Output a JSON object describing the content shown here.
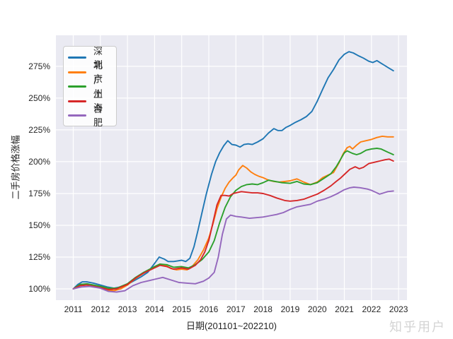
{
  "watermark": "知乎用户",
  "chart_data": {
    "type": "line",
    "title": "",
    "xlabel": "日期(201101~202210)",
    "ylabel": "二手房价格涨幅",
    "grid": true,
    "legend_position": "upper-left",
    "plot_background_color": "#eaeaf2",
    "grid_color": "#ffffff",
    "tick_color": "#262626",
    "xlim": [
      2010.36,
      2023.31
    ],
    "ylim": [
      91.1,
      299.4
    ],
    "x_tick_values": [
      2011,
      2012,
      2013,
      2014,
      2015,
      2016,
      2017,
      2018,
      2019,
      2020,
      2021,
      2022,
      2023
    ],
    "x_tick_labels": [
      "2011",
      "2012",
      "2013",
      "2014",
      "2015",
      "2016",
      "2017",
      "2018",
      "2019",
      "2020",
      "2021",
      "2022",
      "2023"
    ],
    "y_tick_values": [
      100,
      125,
      150,
      175,
      200,
      225,
      250,
      275
    ],
    "y_tick_labels": [
      "100%",
      "125%",
      "150%",
      "175%",
      "200%",
      "225%",
      "250%",
      "275%"
    ],
    "series": [
      {
        "key": "shenzhen",
        "name": "深圳",
        "color": "#1f77b4",
        "points": [
          [
            2011.0,
            100
          ],
          [
            2011.17,
            103.5
          ],
          [
            2011.33,
            105.5
          ],
          [
            2011.5,
            105.5
          ],
          [
            2011.75,
            104.5
          ],
          [
            2012.0,
            103
          ],
          [
            2012.25,
            101.5
          ],
          [
            2012.5,
            100.5
          ],
          [
            2012.75,
            101.5
          ],
          [
            2013.0,
            103.5
          ],
          [
            2013.25,
            106.5
          ],
          [
            2013.5,
            109.5
          ],
          [
            2013.75,
            113
          ],
          [
            2014.0,
            120
          ],
          [
            2014.17,
            125
          ],
          [
            2014.35,
            123.5
          ],
          [
            2014.5,
            121.5
          ],
          [
            2014.7,
            121.5
          ],
          [
            2014.85,
            122
          ],
          [
            2015.0,
            122.5
          ],
          [
            2015.15,
            121.5
          ],
          [
            2015.3,
            124
          ],
          [
            2015.45,
            133
          ],
          [
            2015.6,
            146
          ],
          [
            2015.75,
            160
          ],
          [
            2015.9,
            174
          ],
          [
            2016.0,
            182
          ],
          [
            2016.1,
            190
          ],
          [
            2016.25,
            200
          ],
          [
            2016.4,
            207
          ],
          [
            2016.55,
            212.5
          ],
          [
            2016.7,
            216.5
          ],
          [
            2016.85,
            213.5
          ],
          [
            2017.0,
            213
          ],
          [
            2017.15,
            211.5
          ],
          [
            2017.3,
            213.5
          ],
          [
            2017.45,
            214
          ],
          [
            2017.6,
            213.5
          ],
          [
            2017.8,
            215.5
          ],
          [
            2018.0,
            218
          ],
          [
            2018.2,
            222.5
          ],
          [
            2018.4,
            226
          ],
          [
            2018.55,
            224.5
          ],
          [
            2018.7,
            224.5
          ],
          [
            2018.85,
            227
          ],
          [
            2019.0,
            228.5
          ],
          [
            2019.2,
            231
          ],
          [
            2019.4,
            233
          ],
          [
            2019.6,
            235.5
          ],
          [
            2019.8,
            239.5
          ],
          [
            2020.0,
            247.5
          ],
          [
            2020.2,
            257
          ],
          [
            2020.4,
            266
          ],
          [
            2020.6,
            272.5
          ],
          [
            2020.8,
            280
          ],
          [
            2021.0,
            284.5
          ],
          [
            2021.17,
            286.5
          ],
          [
            2021.33,
            285.5
          ],
          [
            2021.5,
            283.5
          ],
          [
            2021.7,
            281.5
          ],
          [
            2021.9,
            279
          ],
          [
            2022.05,
            278
          ],
          [
            2022.2,
            279.5
          ],
          [
            2022.35,
            277.5
          ],
          [
            2022.5,
            275.5
          ],
          [
            2022.65,
            273.5
          ],
          [
            2022.81,
            271.5
          ]
        ]
      },
      {
        "key": "beijing",
        "name": "北京",
        "color": "#ff7f0e",
        "points": [
          [
            2011.0,
            100
          ],
          [
            2011.25,
            103
          ],
          [
            2011.5,
            103.5
          ],
          [
            2011.75,
            102.5
          ],
          [
            2012.0,
            101
          ],
          [
            2012.25,
            99
          ],
          [
            2012.5,
            98.5
          ],
          [
            2012.75,
            100
          ],
          [
            2013.0,
            103
          ],
          [
            2013.25,
            107.5
          ],
          [
            2013.5,
            111
          ],
          [
            2013.75,
            114.5
          ],
          [
            2014.0,
            117.5
          ],
          [
            2014.2,
            119.5
          ],
          [
            2014.4,
            118.5
          ],
          [
            2014.6,
            116
          ],
          [
            2014.8,
            115
          ],
          [
            2015.0,
            115.5
          ],
          [
            2015.2,
            115
          ],
          [
            2015.4,
            118
          ],
          [
            2015.6,
            123
          ],
          [
            2015.8,
            130.5
          ],
          [
            2016.0,
            140
          ],
          [
            2016.15,
            151
          ],
          [
            2016.3,
            163
          ],
          [
            2016.45,
            172
          ],
          [
            2016.6,
            179
          ],
          [
            2016.75,
            184
          ],
          [
            2016.9,
            187.5
          ],
          [
            2017.0,
            189.5
          ],
          [
            2017.1,
            193.5
          ],
          [
            2017.25,
            197
          ],
          [
            2017.4,
            195
          ],
          [
            2017.55,
            192
          ],
          [
            2017.7,
            190
          ],
          [
            2017.85,
            188.5
          ],
          [
            2018.0,
            187.5
          ],
          [
            2018.2,
            185.5
          ],
          [
            2018.4,
            184.5
          ],
          [
            2018.6,
            184
          ],
          [
            2018.8,
            184.5
          ],
          [
            2019.0,
            185
          ],
          [
            2019.25,
            186.5
          ],
          [
            2019.5,
            184
          ],
          [
            2019.75,
            182
          ],
          [
            2020.0,
            184
          ],
          [
            2020.2,
            187.5
          ],
          [
            2020.4,
            189.5
          ],
          [
            2020.6,
            191.5
          ],
          [
            2020.8,
            199
          ],
          [
            2020.95,
            206
          ],
          [
            2021.1,
            211
          ],
          [
            2021.2,
            212
          ],
          [
            2021.3,
            210
          ],
          [
            2021.45,
            213
          ],
          [
            2021.6,
            215.5
          ],
          [
            2021.8,
            216.5
          ],
          [
            2022.0,
            217.5
          ],
          [
            2022.2,
            219
          ],
          [
            2022.4,
            220
          ],
          [
            2022.6,
            219.5
          ],
          [
            2022.81,
            219.5
          ]
        ]
      },
      {
        "key": "guangzhou",
        "name": "广州",
        "color": "#2ca02c",
        "points": [
          [
            2011.0,
            100
          ],
          [
            2011.25,
            103.5
          ],
          [
            2011.5,
            104
          ],
          [
            2011.75,
            103
          ],
          [
            2012.0,
            102
          ],
          [
            2012.3,
            100.5
          ],
          [
            2012.6,
            100.5
          ],
          [
            2013.0,
            104
          ],
          [
            2013.3,
            109
          ],
          [
            2013.6,
            113
          ],
          [
            2014.0,
            117.5
          ],
          [
            2014.2,
            119.5
          ],
          [
            2014.45,
            119
          ],
          [
            2014.7,
            117
          ],
          [
            2015.0,
            117.5
          ],
          [
            2015.25,
            116.5
          ],
          [
            2015.5,
            119
          ],
          [
            2015.75,
            123
          ],
          [
            2016.0,
            129
          ],
          [
            2016.2,
            138
          ],
          [
            2016.4,
            152
          ],
          [
            2016.6,
            164
          ],
          [
            2016.8,
            172.5
          ],
          [
            2017.0,
            177.5
          ],
          [
            2017.2,
            180.5
          ],
          [
            2017.4,
            182
          ],
          [
            2017.6,
            182.5
          ],
          [
            2017.8,
            182
          ],
          [
            2018.0,
            183.5
          ],
          [
            2018.2,
            185.5
          ],
          [
            2018.45,
            184.5
          ],
          [
            2018.7,
            183.5
          ],
          [
            2019.0,
            183
          ],
          [
            2019.25,
            184.5
          ],
          [
            2019.5,
            182.5
          ],
          [
            2019.75,
            182
          ],
          [
            2020.0,
            183.5
          ],
          [
            2020.25,
            187
          ],
          [
            2020.5,
            190.5
          ],
          [
            2020.7,
            196
          ],
          [
            2020.85,
            201.5
          ],
          [
            2021.0,
            207
          ],
          [
            2021.1,
            208.5
          ],
          [
            2021.3,
            206.5
          ],
          [
            2021.45,
            205.5
          ],
          [
            2021.6,
            206.5
          ],
          [
            2021.8,
            209
          ],
          [
            2022.0,
            210
          ],
          [
            2022.2,
            210.5
          ],
          [
            2022.35,
            210
          ],
          [
            2022.5,
            208.5
          ],
          [
            2022.65,
            207
          ],
          [
            2022.81,
            205.5
          ]
        ]
      },
      {
        "key": "shanghai",
        "name": "上海",
        "color": "#d62728",
        "points": [
          [
            2011.0,
            100
          ],
          [
            2011.25,
            102.5
          ],
          [
            2011.5,
            103
          ],
          [
            2011.75,
            102
          ],
          [
            2012.0,
            101
          ],
          [
            2012.3,
            99.5
          ],
          [
            2012.6,
            100
          ],
          [
            2013.0,
            103.5
          ],
          [
            2013.3,
            108.5
          ],
          [
            2013.6,
            112.5
          ],
          [
            2014.0,
            116.5
          ],
          [
            2014.2,
            118.5
          ],
          [
            2014.45,
            117.5
          ],
          [
            2014.7,
            115.5
          ],
          [
            2015.0,
            116.5
          ],
          [
            2015.25,
            115.5
          ],
          [
            2015.5,
            118.5
          ],
          [
            2015.7,
            123
          ],
          [
            2015.85,
            129
          ],
          [
            2016.0,
            138
          ],
          [
            2016.15,
            152
          ],
          [
            2016.3,
            166
          ],
          [
            2016.45,
            173.5
          ],
          [
            2016.6,
            173.5
          ],
          [
            2016.75,
            173
          ],
          [
            2016.9,
            175
          ],
          [
            2017.0,
            175.5
          ],
          [
            2017.2,
            176.5
          ],
          [
            2017.4,
            176
          ],
          [
            2017.6,
            175.5
          ],
          [
            2017.8,
            175.5
          ],
          [
            2018.0,
            175
          ],
          [
            2018.25,
            173.5
          ],
          [
            2018.5,
            171.5
          ],
          [
            2018.8,
            169.5
          ],
          [
            2019.0,
            169
          ],
          [
            2019.25,
            169.5
          ],
          [
            2019.5,
            170.5
          ],
          [
            2019.75,
            172.5
          ],
          [
            2020.0,
            174.5
          ],
          [
            2020.25,
            177.5
          ],
          [
            2020.5,
            181
          ],
          [
            2020.7,
            184.5
          ],
          [
            2020.85,
            187
          ],
          [
            2021.0,
            190
          ],
          [
            2021.2,
            194
          ],
          [
            2021.4,
            196
          ],
          [
            2021.55,
            194.5
          ],
          [
            2021.7,
            195.5
          ],
          [
            2021.9,
            198.5
          ],
          [
            2022.1,
            199.5
          ],
          [
            2022.3,
            200.5
          ],
          [
            2022.5,
            201.5
          ],
          [
            2022.65,
            202
          ],
          [
            2022.81,
            200.5
          ]
        ]
      },
      {
        "key": "hefei",
        "name": "合肥",
        "color": "#9467bd",
        "points": [
          [
            2011.0,
            100
          ],
          [
            2011.3,
            101.5
          ],
          [
            2011.6,
            102
          ],
          [
            2012.0,
            100.5
          ],
          [
            2012.3,
            98
          ],
          [
            2012.6,
            97.5
          ],
          [
            2012.9,
            98.5
          ],
          [
            2013.2,
            102.5
          ],
          [
            2013.5,
            105
          ],
          [
            2013.8,
            106.5
          ],
          [
            2014.0,
            107.5
          ],
          [
            2014.3,
            109
          ],
          [
            2014.6,
            107
          ],
          [
            2014.9,
            105
          ],
          [
            2015.2,
            104.5
          ],
          [
            2015.5,
            104
          ],
          [
            2015.8,
            106
          ],
          [
            2016.0,
            108.5
          ],
          [
            2016.2,
            113
          ],
          [
            2016.35,
            125
          ],
          [
            2016.5,
            143
          ],
          [
            2016.65,
            155
          ],
          [
            2016.8,
            158
          ],
          [
            2017.0,
            157
          ],
          [
            2017.2,
            156.5
          ],
          [
            2017.5,
            155.5
          ],
          [
            2017.75,
            156
          ],
          [
            2018.0,
            156.5
          ],
          [
            2018.25,
            157.5
          ],
          [
            2018.5,
            158.5
          ],
          [
            2018.75,
            160
          ],
          [
            2019.0,
            162.5
          ],
          [
            2019.25,
            164.5
          ],
          [
            2019.5,
            165.5
          ],
          [
            2019.75,
            166.5
          ],
          [
            2020.0,
            169
          ],
          [
            2020.25,
            170.5
          ],
          [
            2020.5,
            172.5
          ],
          [
            2020.75,
            175
          ],
          [
            2021.0,
            178
          ],
          [
            2021.2,
            179.5
          ],
          [
            2021.35,
            180
          ],
          [
            2021.6,
            179.5
          ],
          [
            2021.85,
            178.5
          ],
          [
            2022.0,
            177.5
          ],
          [
            2022.15,
            176
          ],
          [
            2022.3,
            174.5
          ],
          [
            2022.45,
            175.5
          ],
          [
            2022.6,
            176.5
          ],
          [
            2022.81,
            177
          ]
        ]
      }
    ]
  }
}
